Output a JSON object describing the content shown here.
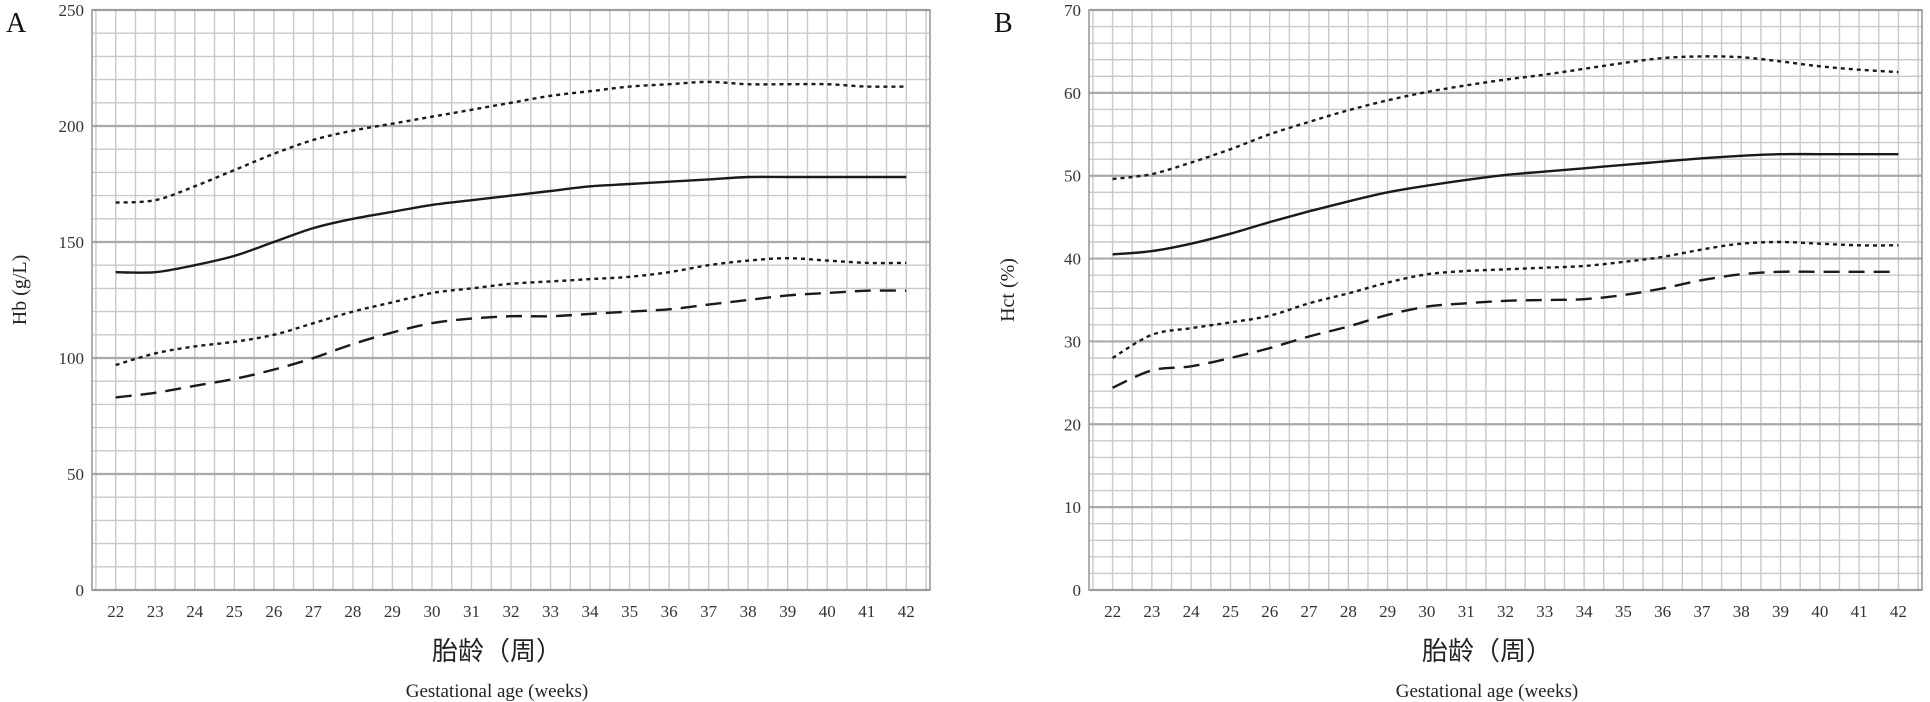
{
  "chart_data": [
    {
      "type": "line",
      "panel_label": "A",
      "ylabel": "Hb (g/L)",
      "xlabel_cn": "胎龄（周）",
      "xlabel_en": "Gestational age (weeks)",
      "x": [
        22,
        23,
        24,
        25,
        26,
        27,
        28,
        29,
        30,
        31,
        32,
        33,
        34,
        35,
        36,
        37,
        38,
        39,
        40,
        41,
        42
      ],
      "x_ticks": [
        "22",
        "23",
        "24",
        "25",
        "26",
        "27",
        "28",
        "29",
        "30",
        "31",
        "32",
        "33",
        "34",
        "35",
        "36",
        "37",
        "38",
        "39",
        "40",
        "41",
        "42"
      ],
      "xlim": [
        21.4,
        42.6
      ],
      "ylim": [
        0,
        250
      ],
      "y_major_ticks": [
        0,
        50,
        100,
        150,
        200,
        250
      ],
      "y_tick_labels": [
        "0",
        "50",
        "100",
        "150",
        "200",
        "250"
      ],
      "y_minor_step": 10,
      "grid": true,
      "series": [
        {
          "style": "dotted",
          "values": [
            167,
            168,
            174,
            181,
            188,
            194,
            198,
            201,
            204,
            207,
            210,
            213,
            215,
            217,
            218,
            219,
            218,
            218,
            218,
            217,
            217
          ]
        },
        {
          "style": "solid",
          "values": [
            137,
            137,
            140,
            144,
            150,
            156,
            160,
            163,
            166,
            168,
            170,
            172,
            174,
            175,
            176,
            177,
            178,
            178,
            178,
            178,
            178
          ]
        },
        {
          "style": "dotted",
          "values": [
            97,
            102,
            105,
            107,
            110,
            115,
            120,
            124,
            128,
            130,
            132,
            133,
            134,
            135,
            137,
            140,
            142,
            143,
            142,
            141,
            141
          ]
        },
        {
          "style": "dashed",
          "values": [
            83,
            85,
            88,
            91,
            95,
            100,
            106,
            111,
            115,
            117,
            118,
            118,
            119,
            120,
            121,
            123,
            125,
            127,
            128,
            129,
            129
          ]
        }
      ]
    },
    {
      "type": "line",
      "panel_label": "B",
      "ylabel": "Hct (%)",
      "xlabel_cn": "胎龄（周）",
      "xlabel_en": "Gestational age (weeks)",
      "x": [
        22,
        23,
        24,
        25,
        26,
        27,
        28,
        29,
        30,
        31,
        32,
        33,
        34,
        35,
        36,
        37,
        38,
        39,
        40,
        41,
        42
      ],
      "x_ticks": [
        "22",
        "23",
        "24",
        "25",
        "26",
        "27",
        "28",
        "29",
        "30",
        "31",
        "32",
        "33",
        "34",
        "35",
        "36",
        "37",
        "38",
        "39",
        "40",
        "41",
        "42"
      ],
      "xlim": [
        21.4,
        42.6
      ],
      "ylim": [
        0,
        70
      ],
      "y_major_ticks": [
        0,
        10,
        20,
        30,
        40,
        50,
        60,
        70
      ],
      "y_tick_labels": [
        "0",
        "10",
        "20",
        "30",
        "40",
        "50",
        "60",
        "70"
      ],
      "y_minor_step": 2,
      "grid": true,
      "series": [
        {
          "style": "dotted",
          "values": [
            49.6,
            50.2,
            51.6,
            53.2,
            55.0,
            56.5,
            57.9,
            59.1,
            60.1,
            60.9,
            61.6,
            62.2,
            62.9,
            63.6,
            64.2,
            64.4,
            64.3,
            63.8,
            63.2,
            62.8,
            62.5
          ]
        },
        {
          "style": "solid",
          "values": [
            40.5,
            40.9,
            41.8,
            43.0,
            44.4,
            45.7,
            46.9,
            48.0,
            48.8,
            49.5,
            50.1,
            50.5,
            50.9,
            51.3,
            51.7,
            52.1,
            52.4,
            52.6,
            52.6,
            52.6,
            52.6
          ]
        },
        {
          "style": "dotted",
          "values": [
            28.0,
            30.8,
            31.6,
            32.3,
            33.1,
            34.6,
            35.8,
            37.1,
            38.1,
            38.5,
            38.7,
            38.9,
            39.1,
            39.6,
            40.2,
            41.1,
            41.8,
            42.0,
            41.8,
            41.6,
            41.6
          ]
        },
        {
          "style": "dashed",
          "values": [
            24.4,
            26.5,
            27.0,
            28.0,
            29.2,
            30.6,
            31.8,
            33.2,
            34.2,
            34.6,
            34.9,
            35.0,
            35.1,
            35.6,
            36.4,
            37.4,
            38.1,
            38.4,
            38.4,
            38.4,
            38.4
          ]
        }
      ]
    }
  ]
}
